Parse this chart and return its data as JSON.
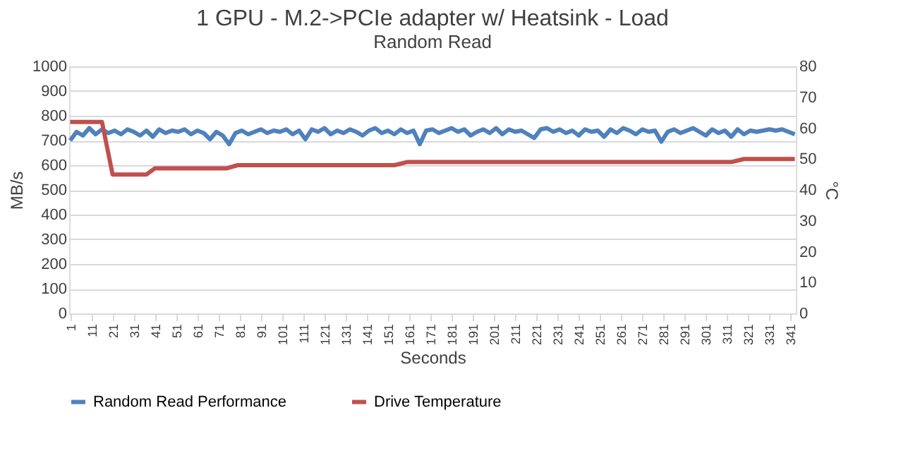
{
  "chart_data": {
    "type": "line",
    "title": "1 GPU - M.2->PCIe adapter w/ Heatsink - Load",
    "subtitle": "Random Read",
    "xlabel": "Seconds",
    "ylabel": "MB/s",
    "y2label": "°C",
    "xlim": [
      0.5,
      343.5
    ],
    "xticks": [
      1,
      11,
      21,
      31,
      41,
      51,
      61,
      71,
      81,
      91,
      101,
      111,
      121,
      131,
      141,
      151,
      161,
      171,
      181,
      191,
      201,
      211,
      221,
      231,
      241,
      251,
      261,
      271,
      281,
      291,
      301,
      311,
      321,
      331,
      341
    ],
    "ylim": [
      0,
      1000
    ],
    "yticks": [
      0,
      100,
      200,
      300,
      400,
      500,
      600,
      700,
      800,
      900,
      1000
    ],
    "y2lim": [
      0,
      80
    ],
    "y2ticks": [
      0,
      10,
      20,
      30,
      40,
      50,
      60,
      70,
      80
    ],
    "grid": "y",
    "legend": "bottom",
    "marker": "none",
    "line_style": "solid",
    "series": [
      {
        "name": "Random Read Performance",
        "color": "#4f81bd",
        "x": [
          1,
          4,
          7,
          10,
          13,
          16,
          19,
          22,
          25,
          28,
          31,
          34,
          37,
          40,
          43,
          46,
          49,
          52,
          55,
          58,
          61,
          64,
          67,
          70,
          73,
          76,
          79,
          82,
          85,
          88,
          91,
          94,
          97,
          100,
          103,
          106,
          109,
          112,
          115,
          118,
          121,
          124,
          127,
          130,
          133,
          136,
          139,
          142,
          145,
          148,
          151,
          154,
          157,
          160,
          163,
          166,
          169,
          172,
          175,
          178,
          181,
          184,
          187,
          190,
          193,
          196,
          199,
          202,
          205,
          208,
          211,
          214,
          217,
          220,
          223,
          226,
          229,
          232,
          235,
          238,
          241,
          244,
          247,
          250,
          253,
          256,
          259,
          262,
          265,
          268,
          271,
          274,
          277,
          280,
          283,
          286,
          289,
          292,
          295,
          298,
          301,
          304,
          307,
          310,
          313,
          316,
          319,
          322,
          325,
          328,
          331,
          334,
          337,
          340,
          343
        ],
        "values": [
          700,
          735,
          720,
          750,
          725,
          745,
          730,
          740,
          725,
          745,
          735,
          720,
          740,
          715,
          745,
          730,
          740,
          735,
          745,
          725,
          740,
          730,
          705,
          735,
          720,
          685,
          730,
          740,
          725,
          735,
          745,
          730,
          740,
          735,
          745,
          725,
          740,
          705,
          745,
          735,
          750,
          725,
          740,
          730,
          745,
          735,
          720,
          740,
          750,
          730,
          740,
          725,
          745,
          730,
          740,
          685,
          740,
          745,
          730,
          740,
          750,
          735,
          745,
          720,
          735,
          745,
          730,
          750,
          725,
          745,
          735,
          740,
          725,
          710,
          745,
          750,
          735,
          745,
          730,
          740,
          720,
          745,
          735,
          740,
          715,
          745,
          730,
          750,
          740,
          725,
          745,
          735,
          740,
          695,
          735,
          745,
          730,
          740,
          750,
          735,
          720,
          745,
          730,
          740,
          715,
          745,
          725,
          740,
          735,
          740,
          745,
          740,
          745,
          735,
          725
        ]
      },
      {
        "name": "Drive Temperature",
        "color": "#c0504d",
        "axis": "y2",
        "x": [
          1,
          16,
          21,
          37,
          41,
          75,
          80,
          154,
          160,
          313,
          319,
          343
        ],
        "values": [
          62,
          62,
          45,
          45,
          47,
          47,
          48,
          48,
          49,
          49,
          50,
          50
        ]
      }
    ]
  }
}
